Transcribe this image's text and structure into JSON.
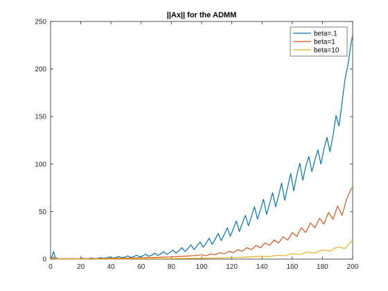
{
  "chart_data": {
    "type": "line",
    "title": "||Ax|| for the ADMM",
    "xlabel": "",
    "ylabel": "",
    "xlim": [
      0,
      200
    ],
    "ylim": [
      0,
      250
    ],
    "xticks": [
      0,
      20,
      40,
      60,
      80,
      100,
      120,
      140,
      160,
      180,
      200
    ],
    "yticks": [
      0,
      50,
      100,
      150,
      200,
      250
    ],
    "grid": false,
    "legend_position": "top-right",
    "series": [
      {
        "name": "beta=.1",
        "color": "#0072BD",
        "x": [
          0,
          1,
          2,
          3,
          4,
          5,
          7,
          9,
          11,
          13,
          15,
          17,
          19,
          21,
          23,
          25,
          27,
          29,
          31,
          33,
          35,
          37,
          39,
          41,
          43,
          45,
          47,
          49,
          51,
          53,
          55,
          57,
          59,
          61,
          63,
          65,
          67,
          69,
          71,
          73,
          75,
          77,
          79,
          81,
          83,
          85,
          87,
          89,
          91,
          93,
          95,
          97,
          99,
          101,
          103,
          105,
          107,
          109,
          111,
          113,
          115,
          117,
          119,
          121,
          123,
          125,
          127,
          129,
          131,
          133,
          135,
          137,
          139,
          141,
          143,
          145,
          147,
          149,
          151,
          153,
          155,
          157,
          159,
          161,
          163,
          165,
          167,
          169,
          171,
          173,
          175,
          177,
          179,
          181,
          183,
          185,
          187,
          189,
          191,
          193,
          195,
          197,
          199,
          200
        ],
        "y": [
          0,
          3,
          8,
          2,
          1,
          0.5,
          0.4,
          0.6,
          0.3,
          0.5,
          0.6,
          0.3,
          0.5,
          1.0,
          0.4,
          0.6,
          1.2,
          0.5,
          0.8,
          1.6,
          0.9,
          1.2,
          2.2,
          1.1,
          1.6,
          2.8,
          1.4,
          2.0,
          3.3,
          1.8,
          2.5,
          4.2,
          2.3,
          3.4,
          5.2,
          3.0,
          4.2,
          6.3,
          3.8,
          5.6,
          7.8,
          5.0,
          7.0,
          9.5,
          6.3,
          8.8,
          12.0,
          8.0,
          11.2,
          15.0,
          10.0,
          14.0,
          18.0,
          12.5,
          17.0,
          22.0,
          15.5,
          21.0,
          27.0,
          19.5,
          26.0,
          33.0,
          24.0,
          32.0,
          40.0,
          29.0,
          38.0,
          46.0,
          35.0,
          45.0,
          55.0,
          42.0,
          52.0,
          63.0,
          47.0,
          58.0,
          70.0,
          55.0,
          67.0,
          80.0,
          62.0,
          76.0,
          90.0,
          72.0,
          88.0,
          101.0,
          83.0,
          98.0,
          108.0,
          92.0,
          104.0,
          115.0,
          100.0,
          116.0,
          128.0,
          113.0,
          130.0,
          151.0,
          140.0,
          165.0,
          190.0,
          205.0,
          228.0,
          235.0
        ]
      },
      {
        "name": "beta=1",
        "color": "#D95319",
        "x": [
          0,
          1,
          2,
          3,
          5,
          10,
          20,
          30,
          40,
          50,
          60,
          70,
          80,
          90,
          95,
          100,
          103,
          106,
          109,
          112,
          115,
          118,
          121,
          124,
          127,
          130,
          133,
          136,
          139,
          142,
          145,
          148,
          151,
          154,
          157,
          160,
          163,
          166,
          169,
          172,
          175,
          178,
          181,
          184,
          187,
          190,
          193,
          196,
          199,
          200
        ],
        "y": [
          0,
          1.2,
          2.0,
          0.6,
          0.3,
          0.4,
          0.5,
          0.6,
          0.8,
          1.0,
          1.4,
          1.8,
          2.4,
          3.2,
          3.8,
          4.5,
          3.6,
          5.5,
          4.6,
          6.8,
          5.6,
          8.2,
          6.8,
          10.0,
          8.3,
          12.0,
          10.0,
          14.5,
          12.0,
          17.0,
          14.5,
          20.0,
          17.0,
          23.5,
          20.0,
          28.0,
          24.0,
          33.0,
          28.0,
          38.0,
          33.0,
          43.0,
          37.0,
          49.0,
          42.0,
          56.0,
          46.0,
          63.0,
          74.0,
          76.0
        ]
      },
      {
        "name": "beta=10",
        "color": "#EDB120",
        "x": [
          0,
          1,
          2,
          3,
          5,
          10,
          20,
          40,
          60,
          80,
          100,
          110,
          120,
          130,
          140,
          145,
          150,
          155,
          160,
          165,
          170,
          175,
          180,
          185,
          190,
          195,
          200
        ],
        "y": [
          0,
          0.5,
          1.0,
          0.4,
          0.2,
          0.2,
          0.2,
          0.3,
          0.4,
          0.6,
          0.9,
          1.2,
          1.6,
          2.2,
          3.0,
          2.6,
          4.2,
          3.6,
          5.6,
          4.8,
          7.4,
          6.4,
          9.8,
          8.4,
          12.8,
          11.2,
          20.0
        ]
      }
    ]
  }
}
